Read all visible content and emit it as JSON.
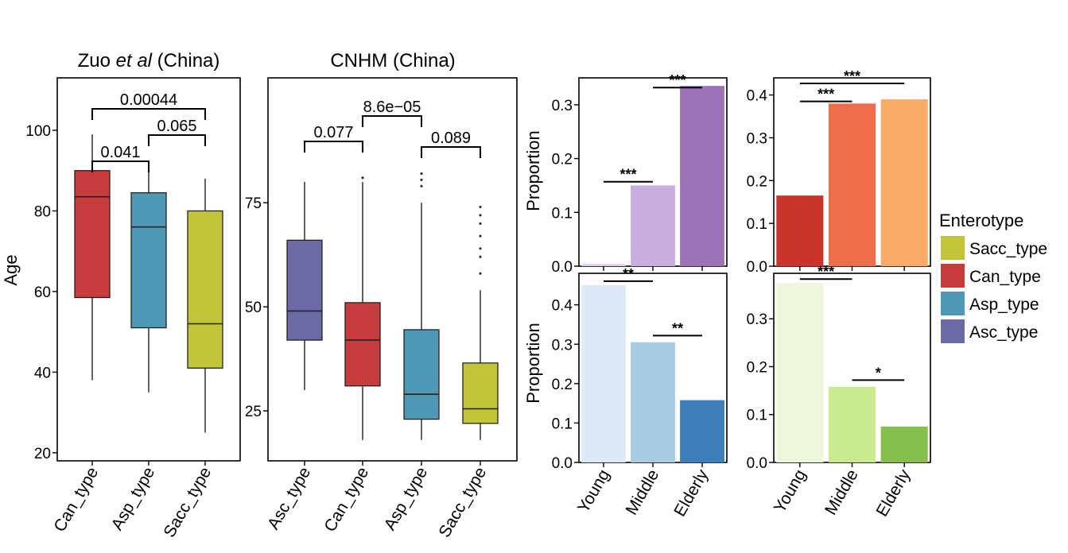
{
  "chart_data": [
    {
      "type": "box",
      "title_plain": "Zuo ",
      "title_italic": "et al",
      "title_suffix": " (China)",
      "ylabel": "Age",
      "ylim": [
        18,
        113
      ],
      "yticks": [
        20,
        40,
        60,
        80,
        100
      ],
      "boxes": [
        {
          "label": "Can_type",
          "color": "#c63c3c",
          "min": 38,
          "q1": 58.5,
          "median": 83.5,
          "q3": 90,
          "max": 99,
          "outliers": []
        },
        {
          "label": "Asp_type",
          "color": "#4f98b5",
          "min": 35,
          "q1": 51,
          "median": 76,
          "q3": 84.5,
          "max": 92,
          "outliers": []
        },
        {
          "label": "Sacc_type",
          "color": "#c2c43a",
          "min": 25,
          "q1": 41,
          "median": 52,
          "q3": 80,
          "max": 88,
          "outliers": []
        }
      ],
      "comparisons": [
        {
          "from": 0,
          "to": 1,
          "label": "0.041"
        },
        {
          "from": 1,
          "to": 2,
          "label": "0.065"
        },
        {
          "from": 0,
          "to": 2,
          "label": "0.00044"
        }
      ]
    },
    {
      "type": "box",
      "title": "CNHM (China)",
      "ylim": [
        13,
        105
      ],
      "yticks": [
        25,
        50,
        75
      ],
      "boxes": [
        {
          "label": "Asc_type",
          "color": "#6c6aa4",
          "min": 30,
          "q1": 42,
          "median": 49,
          "q3": 66,
          "max": 80,
          "outliers": []
        },
        {
          "label": "Can_type",
          "color": "#c63c3c",
          "min": 18,
          "q1": 31,
          "median": 42,
          "q3": 51,
          "max": 80,
          "outliers": [
            81
          ]
        },
        {
          "label": "Asp_type",
          "color": "#4f98b5",
          "min": 18,
          "q1": 23,
          "median": 29,
          "q3": 44.5,
          "max": 75,
          "outliers": [
            79,
            80.5,
            82
          ]
        },
        {
          "label": "Sacc_type",
          "color": "#c2c43a",
          "min": 18,
          "q1": 22,
          "median": 25.5,
          "q3": 36.5,
          "max": 54,
          "outliers": [
            58,
            62,
            64,
            67,
            70,
            72,
            74
          ]
        }
      ],
      "comparisons": [
        {
          "from": 0,
          "to": 1,
          "label": "0.077"
        },
        {
          "from": 1,
          "to": 2,
          "label": "8.6e−05"
        },
        {
          "from": 2,
          "to": 3,
          "label": "0.089"
        }
      ]
    },
    {
      "type": "bar",
      "ylabel": "Proportion",
      "categories": [
        "Young",
        "Middle",
        "Elderly"
      ],
      "values": [
        0.004,
        0.15,
        0.335
      ],
      "colors": [
        "#ddd0ea",
        "#c9aee2",
        "#9d72b7"
      ],
      "ylim": [
        0,
        0.35
      ],
      "yticks": [
        "0.0",
        "0.1",
        "0.2",
        "0.3"
      ],
      "significance": [
        {
          "from": 0,
          "to": 1,
          "y": 0.157,
          "label": "***"
        },
        {
          "from": 1,
          "to": 2,
          "y": 0.332,
          "label": "***"
        }
      ]
    },
    {
      "type": "bar",
      "categories": [
        "Young",
        "Middle",
        "Elderly"
      ],
      "values": [
        0.165,
        0.38,
        0.39
      ],
      "colors": [
        "#c8352c",
        "#ee6e4a",
        "#fdab69"
      ],
      "ylim": [
        0,
        0.44
      ],
      "yticks": [
        "0.0",
        "0.1",
        "0.2",
        "0.3",
        "0.4"
      ],
      "significance": [
        {
          "from": 0,
          "to": 1,
          "y": 0.385,
          "label": "***"
        },
        {
          "from": 0,
          "to": 2,
          "y": 0.427,
          "label": "***"
        }
      ]
    },
    {
      "type": "bar",
      "ylabel": "Proportion",
      "xlabels": true,
      "categories": [
        "Young",
        "Middle",
        "Elderly"
      ],
      "values": [
        0.45,
        0.305,
        0.158
      ],
      "colors": [
        "#dde9f7",
        "#a8cbe1",
        "#3d7fb8"
      ],
      "ylim": [
        0,
        0.48
      ],
      "yticks": [
        "0.0",
        "0.1",
        "0.2",
        "0.3",
        "0.4"
      ],
      "significance": [
        {
          "from": 0,
          "to": 1,
          "y": 0.46,
          "label": "**"
        },
        {
          "from": 1,
          "to": 2,
          "y": 0.322,
          "label": "**"
        }
      ]
    },
    {
      "type": "bar",
      "xlabels": true,
      "categories": [
        "Young",
        "Middle",
        "Elderly"
      ],
      "values": [
        0.375,
        0.158,
        0.075
      ],
      "colors": [
        "#eef7dc",
        "#c9ea8d",
        "#86c04c"
      ],
      "ylim": [
        0,
        0.395
      ],
      "yticks": [
        "0.0",
        "0.1",
        "0.2",
        "0.3"
      ],
      "significance": [
        {
          "from": 0,
          "to": 1,
          "y": 0.383,
          "label": "***"
        },
        {
          "from": 1,
          "to": 2,
          "y": 0.172,
          "label": "*"
        }
      ]
    }
  ],
  "legend": {
    "title": "Enterotype",
    "items": [
      {
        "label": "Sacc_type",
        "color": "#c2c43a"
      },
      {
        "label": "Can_type",
        "color": "#c63c3c"
      },
      {
        "label": "Asp_type",
        "color": "#4f98b5"
      },
      {
        "label": "Asc_type",
        "color": "#6c6aa4"
      }
    ]
  }
}
